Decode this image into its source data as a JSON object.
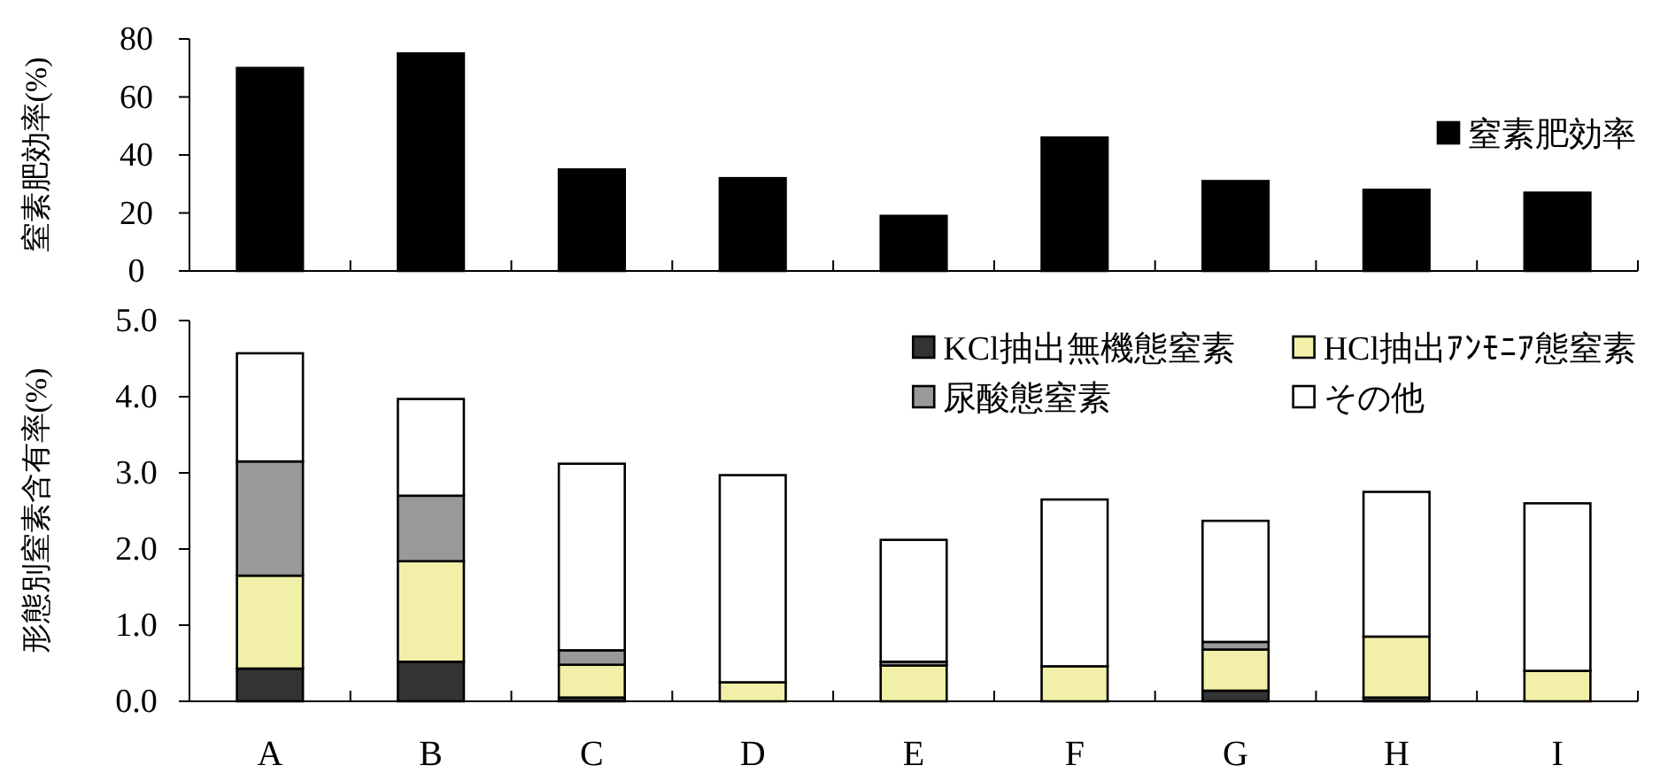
{
  "chart_data": [
    {
      "type": "bar",
      "ylabel": "窒素肥効率(%)",
      "categories": [
        null,
        null,
        null,
        null,
        null,
        null,
        null,
        null,
        null
      ],
      "tick_labels": "y",
      "legend": "top right",
      "ylim": [
        0,
        80
      ],
      "yticks": [
        0,
        20,
        40,
        60,
        80
      ],
      "series": [
        {
          "name": "窒素肥効率",
          "color": "#000000",
          "values": [
            70,
            75,
            35,
            32,
            19,
            46,
            31,
            28,
            27
          ]
        }
      ]
    },
    {
      "type": "bar",
      "stacked": true,
      "ylabel": "形態別窒素含有率(%)",
      "categories": [
        "A",
        "B",
        "C",
        "D",
        "E",
        "F",
        "G",
        "H",
        "I"
      ],
      "legend": "top right",
      "ylim": [
        0,
        5
      ],
      "yticks": [
        {
          "value": 0,
          "label": "0.0"
        },
        {
          "value": 1,
          "label": "1.0"
        },
        {
          "value": 2,
          "label": "2.0"
        },
        {
          "value": 3,
          "label": "3.0"
        },
        {
          "value": 4,
          "label": "4.0"
        },
        {
          "value": 5,
          "label": "5.0"
        }
      ],
      "series": [
        {
          "name": "KCl抽出無機態窒素",
          "color": "#333333",
          "values": [
            0.43,
            0.52,
            0.05,
            null,
            null,
            null,
            0.14,
            0.05,
            null
          ]
        },
        {
          "name": "HCl抽出ｱﾝﾓﾆｱ態窒素",
          "color": "#f2f0a8",
          "values": [
            1.22,
            1.32,
            0.43,
            0.25,
            0.47,
            0.46,
            0.54,
            0.8,
            0.4
          ]
        },
        {
          "name": "尿酸態窒素",
          "color": "#999999",
          "values": [
            1.5,
            0.86,
            0.19,
            0,
            0.05,
            0,
            0.1,
            0,
            0
          ]
        },
        {
          "name": "その他",
          "color": "#ffffff",
          "values": [
            1.42,
            1.27,
            2.45,
            2.72,
            1.6,
            2.19,
            1.59,
            1.9,
            2.2
          ]
        }
      ]
    }
  ]
}
